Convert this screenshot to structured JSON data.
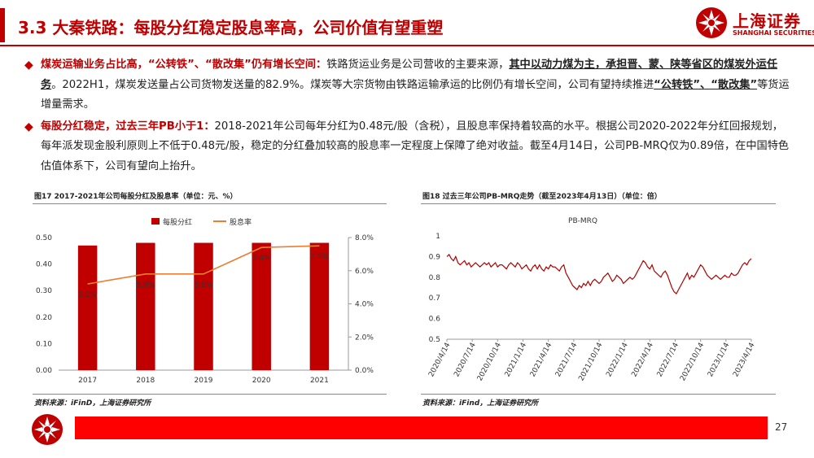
{
  "header": {
    "title": "3.3 大秦铁路：每股分红稳定股息率高，公司价值有望重塑",
    "logo_cn": "上海证券",
    "logo_en": "SHANGHAI SECURITIES"
  },
  "bullets": [
    {
      "lead": "煤炭运输业务占比高，“公转铁”、“散改集”仍有增长空间：",
      "p1": "铁路货运业务是公司营收的主要来源，",
      "u1": "其中以动力煤为主，承担晋、蒙、陕等省区的煤炭外运任务",
      "p2": "。2022H1，煤炭发送量占公司货物发送量的82.9%。煤炭等大宗货物由铁路运输承运的比例仍有增长空间，公司有望持续推进",
      "u2": "“公转铁”、“散改集”",
      "p3": "等货运增量需求。"
    },
    {
      "lead": "每股分红稳定，过去三年PB小于1：",
      "p1": "2018-2021年公司每年分红为0.48元/股（含税），且股息率保持着较高的水平。根据公司2020-2022年分红回报规划，每年派发现金股利原则上不低于0.48元/股，稳定的分红叠加较高的股息率一定程度上保障了绝对收益。截至4月14日，公司PB-MRQ仅为0.89倍，在中国特色估值体系下，公司有望向上抬升。"
    }
  ],
  "figures": {
    "fig17_title": "图17 2017-2021年公司每股分红及股息率（单位：元、%）",
    "fig17_source": "资料来源：iFinD，上海证券研究所",
    "fig18_title": "图18 过去三年公司PB-MRQ走势（截至2023年4月13日）（单位：倍）",
    "fig18_source": "资料来源：iFind，上海证券研究所"
  },
  "footer": {
    "page": "27"
  },
  "colors": {
    "brand_red": "#c00000",
    "bar_red": "#c00000",
    "line_orange": "#ed7d31",
    "pb_line": "#b00000",
    "footer_red": "#ff0000"
  },
  "chart_data": [
    {
      "type": "bar",
      "categories": [
        "2017",
        "2018",
        "2019",
        "2020",
        "2021"
      ],
      "series": [
        {
          "name": "每股分红",
          "axis": "left",
          "values": [
            0.47,
            0.48,
            0.48,
            0.48,
            0.48
          ]
        },
        {
          "name": "股息率",
          "axis": "right",
          "type": "line",
          "values": [
            5.2,
            5.8,
            5.8,
            7.4,
            7.5
          ],
          "labels": [
            "5.2%",
            "5.8%",
            "5.8%",
            "7.4%",
            "7.5%"
          ]
        }
      ],
      "left_ticks": [
        "0.00",
        "0.10",
        "0.20",
        "0.30",
        "0.40",
        "0.50"
      ],
      "right_ticks": [
        "0.0%",
        "2.0%",
        "4.0%",
        "6.0%",
        "8.0%"
      ],
      "ylim": [
        0,
        0.5
      ],
      "y2lim": [
        0,
        8
      ],
      "legend": "top",
      "grid": false
    },
    {
      "type": "line",
      "title": "PB-MRQ",
      "x_ticks": [
        "2020/4/14",
        "2020/7/14",
        "2020/10/14",
        "2021/1/14",
        "2021/4/14",
        "2021/7/14",
        "2021/10/14",
        "2022/1/14",
        "2022/4/14",
        "2022/7/14",
        "2022/10/14",
        "2023/1/14",
        "2023/4/14"
      ],
      "y_ticks": [
        "0.5",
        "0.6",
        "0.7",
        "0.8",
        "0.9",
        "1"
      ],
      "ylim": [
        0.5,
        1.0
      ],
      "grid": false,
      "series": [
        {
          "values": [
            0.9,
            0.91,
            0.89,
            0.88,
            0.9,
            0.87,
            0.86,
            0.87,
            0.88,
            0.86,
            0.87,
            0.85,
            0.86,
            0.87,
            0.86,
            0.85,
            0.86,
            0.87,
            0.86,
            0.87,
            0.85,
            0.86,
            0.87,
            0.85,
            0.86,
            0.86,
            0.85,
            0.84,
            0.86,
            0.87,
            0.86,
            0.85,
            0.87,
            0.86,
            0.84,
            0.85,
            0.86,
            0.84,
            0.83,
            0.85,
            0.86,
            0.84,
            0.86,
            0.84,
            0.83,
            0.85,
            0.84,
            0.86,
            0.85,
            0.85,
            0.84,
            0.83,
            0.85,
            0.86,
            0.82,
            0.8,
            0.78,
            0.76,
            0.75,
            0.74,
            0.76,
            0.75,
            0.77,
            0.76,
            0.78,
            0.76,
            0.78,
            0.79,
            0.78,
            0.77,
            0.78,
            0.8,
            0.81,
            0.82,
            0.8,
            0.78,
            0.79,
            0.81,
            0.8,
            0.79,
            0.77,
            0.78,
            0.79,
            0.8,
            0.79,
            0.8,
            0.82,
            0.84,
            0.86,
            0.88,
            0.87,
            0.85,
            0.84,
            0.86,
            0.83,
            0.82,
            0.81,
            0.8,
            0.82,
            0.83,
            0.81,
            0.78,
            0.75,
            0.73,
            0.72,
            0.74,
            0.76,
            0.78,
            0.8,
            0.82,
            0.79,
            0.81,
            0.8,
            0.82,
            0.84,
            0.86,
            0.85,
            0.83,
            0.81,
            0.8,
            0.79,
            0.8,
            0.81,
            0.8,
            0.79,
            0.8,
            0.81,
            0.8,
            0.8,
            0.82,
            0.81,
            0.81,
            0.82,
            0.84,
            0.86,
            0.87,
            0.86,
            0.88,
            0.89
          ]
        }
      ]
    }
  ]
}
